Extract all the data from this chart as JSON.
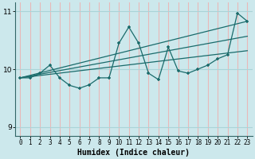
{
  "xlabel": "Humidex (Indice chaleur)",
  "bg_color": "#cce8ec",
  "grid_color_v": "#e8b8b8",
  "grid_color_h": "#aad4d8",
  "line_color": "#1a6b6b",
  "x_values": [
    0,
    1,
    2,
    3,
    4,
    5,
    6,
    7,
    8,
    9,
    10,
    11,
    12,
    13,
    14,
    15,
    16,
    17,
    18,
    19,
    20,
    21,
    22,
    23
  ],
  "y_main": [
    9.85,
    9.85,
    9.93,
    10.07,
    9.85,
    9.72,
    9.67,
    9.73,
    9.85,
    9.85,
    10.45,
    10.73,
    10.45,
    9.93,
    9.82,
    10.38,
    9.97,
    9.93,
    10.0,
    10.07,
    10.18,
    10.25,
    10.97,
    10.83
  ],
  "trend1_x": [
    0,
    23
  ],
  "trend1_y": [
    9.85,
    10.83
  ],
  "trend2_x": [
    0,
    23
  ],
  "trend2_y": [
    9.85,
    10.57
  ],
  "trend3_x": [
    0,
    23
  ],
  "trend3_y": [
    9.85,
    10.32
  ],
  "ylim": [
    8.85,
    11.15
  ],
  "xlim": [
    -0.5,
    23.5
  ],
  "yticks": [
    9,
    10,
    11
  ],
  "xticks": [
    0,
    1,
    2,
    3,
    4,
    5,
    6,
    7,
    8,
    9,
    10,
    11,
    12,
    13,
    14,
    15,
    16,
    17,
    18,
    19,
    20,
    21,
    22,
    23
  ]
}
